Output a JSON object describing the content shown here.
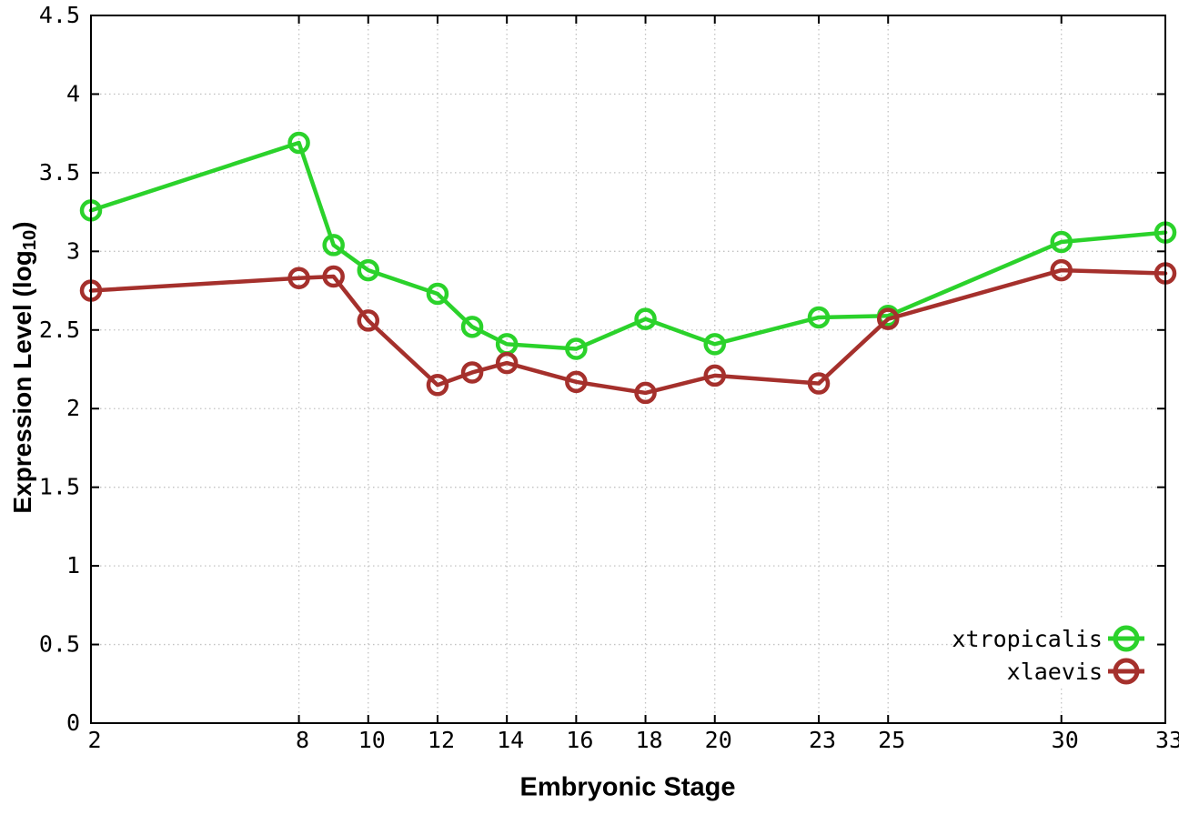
{
  "chart_data": {
    "type": "line",
    "title": "",
    "xlabel": "Embryonic Stage",
    "ylabel": {
      "prefix": "Expression Level (log",
      "sub": "10",
      "suffix": ")"
    },
    "x": [
      2,
      8,
      9,
      10,
      12,
      13,
      14,
      16,
      18,
      20,
      23,
      25,
      30,
      33
    ],
    "series": [
      {
        "name": "xtropicalis",
        "color": "#2bd22b",
        "values": [
          3.26,
          3.69,
          3.04,
          2.88,
          2.73,
          2.52,
          2.41,
          2.38,
          2.57,
          2.41,
          2.58,
          2.59,
          3.06,
          3.12
        ]
      },
      {
        "name": "xlaevis",
        "color": "#a5302c",
        "values": [
          2.75,
          2.83,
          2.84,
          2.56,
          2.15,
          2.23,
          2.29,
          2.17,
          2.1,
          2.21,
          2.16,
          2.57,
          2.88,
          2.86
        ]
      }
    ],
    "xlim": [
      2,
      33
    ],
    "ylim": [
      0,
      4.5
    ],
    "xticks": [
      "2",
      "8",
      "10",
      "12",
      "14",
      "16",
      "18",
      "20",
      "23",
      "25",
      "30",
      "33"
    ],
    "yticks": [
      "0",
      "0.5",
      "1",
      "1.5",
      "2",
      "2.5",
      "3",
      "3.5",
      "4",
      "4.5"
    ],
    "grid": true,
    "legend_position": "bottom-right",
    "marker": "open-circle"
  },
  "colors": {
    "grid": "#c2c2c2",
    "axis": "#000000",
    "background": "#ffffff"
  }
}
